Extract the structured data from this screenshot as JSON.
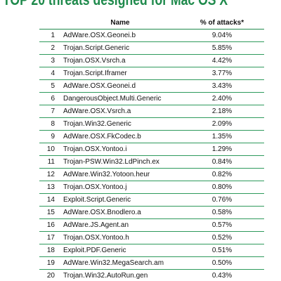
{
  "title": "TOP 20 threats designed for Mac OS X",
  "table": {
    "headers": {
      "rank": "",
      "name": "Name",
      "percent": "% of attacks*"
    },
    "rows": [
      {
        "rank": "1",
        "name": "AdWare.OSX.Geonei.b",
        "percent": "9.04%"
      },
      {
        "rank": "2",
        "name": "Trojan.Script.Generic",
        "percent": "5.85%"
      },
      {
        "rank": "3",
        "name": "Trojan.OSX.Vsrch.a",
        "percent": "4.42%"
      },
      {
        "rank": "4",
        "name": "Trojan.Script.Iframer",
        "percent": "3.77%"
      },
      {
        "rank": "5",
        "name": "AdWare.OSX.Geonei.d",
        "percent": "3.43%"
      },
      {
        "rank": "6",
        "name": "DangerousObject.Multi.Generic",
        "percent": "2.40%"
      },
      {
        "rank": "7",
        "name": "AdWare.OSX.Vsrch.a",
        "percent": "2.18%"
      },
      {
        "rank": "8",
        "name": "Trojan.Win32.Generic",
        "percent": "2.09%"
      },
      {
        "rank": "9",
        "name": "AdWare.OSX.FkCodec.b",
        "percent": "1.35%"
      },
      {
        "rank": "10",
        "name": "Trojan.OSX.Yontoo.i",
        "percent": "1.29%"
      },
      {
        "rank": "11",
        "name": "Trojan-PSW.Win32.LdPinch.ex",
        "percent": "0.84%"
      },
      {
        "rank": "12",
        "name": "AdWare.Win32.Yotoon.heur",
        "percent": "0.82%"
      },
      {
        "rank": "13",
        "name": "Trojan.OSX.Yontoo.j",
        "percent": "0.80%"
      },
      {
        "rank": "14",
        "name": "Exploit.Script.Generic",
        "percent": "0.76%"
      },
      {
        "rank": "15",
        "name": "AdWare.OSX.Bnodlero.a",
        "percent": "0.58%"
      },
      {
        "rank": "16",
        "name": "AdWare.JS.Agent.an",
        "percent": "0.57%"
      },
      {
        "rank": "17",
        "name": "Trojan.OSX.Yontoo.h",
        "percent": "0.52%"
      },
      {
        "rank": "18",
        "name": "Exploit.PDF.Generic",
        "percent": "0.51%"
      },
      {
        "rank": "19",
        "name": "AdWare.Win32.MegaSearch.am",
        "percent": "0.50%"
      },
      {
        "rank": "20",
        "name": "Trojan.Win32.AutoRun.gen",
        "percent": "0.43%"
      }
    ]
  }
}
